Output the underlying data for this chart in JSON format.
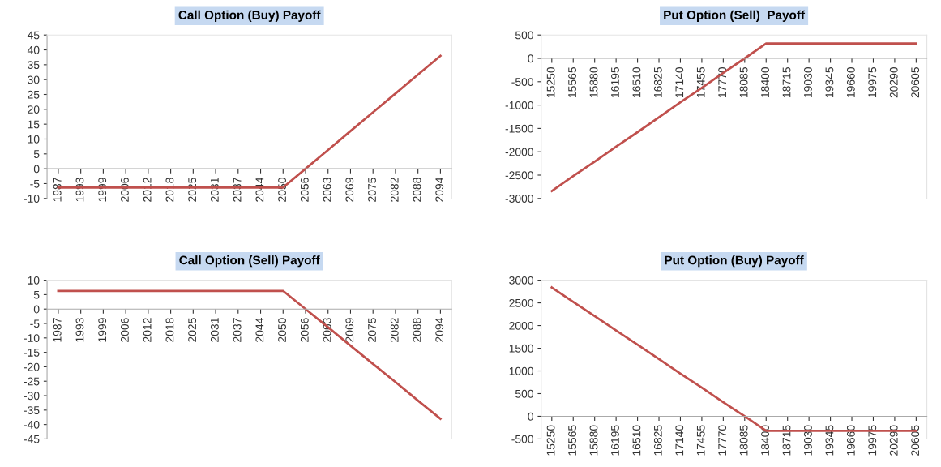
{
  "chart_data": [
    {
      "type": "line",
      "title": "Call Option (Buy) Payoff",
      "categories": [
        "1987",
        "1993",
        "1999",
        "2006",
        "2012",
        "2018",
        "2025",
        "2031",
        "2037",
        "2044",
        "2050",
        "2056",
        "2063",
        "2069",
        "2075",
        "2082",
        "2088",
        "2094"
      ],
      "series": [
        {
          "color": "#c0504d",
          "values": [
            -6.3,
            -6.3,
            -6.3,
            -6.3,
            -6.3,
            -6.3,
            -6.3,
            -6.3,
            -6.3,
            -6.3,
            -6.3,
            0,
            6.3,
            12.7,
            19,
            25.3,
            31.7,
            38
          ]
        }
      ],
      "ylim": [
        -10,
        45
      ],
      "yticks": [
        -10,
        -5,
        0,
        5,
        10,
        15,
        20,
        25,
        30,
        35,
        40,
        45
      ],
      "grid": false,
      "legend": false
    },
    {
      "type": "line",
      "title": "Put Option (Sell)  Payoff",
      "categories": [
        "15250",
        "15565",
        "15880",
        "16195",
        "16510",
        "16825",
        "17140",
        "17455",
        "17770",
        "18085",
        "18400",
        "18715",
        "19030",
        "19345",
        "19660",
        "19975",
        "20290",
        "20605"
      ],
      "series": [
        {
          "color": "#c0504d",
          "values": [
            -2840,
            -2520,
            -2210,
            -1890,
            -1580,
            -1260,
            -940,
            -630,
            -310,
            0,
            320,
            320,
            320,
            320,
            320,
            320,
            320,
            320
          ]
        }
      ],
      "ylim": [
        -3000,
        500
      ],
      "yticks": [
        -3000,
        -2500,
        -2000,
        -1500,
        -1000,
        -500,
        0,
        500
      ],
      "grid": false,
      "legend": false
    },
    {
      "type": "line",
      "title": "Call Option (Sell) Payoff",
      "categories": [
        "1987",
        "1993",
        "1999",
        "2006",
        "2012",
        "2018",
        "2025",
        "2031",
        "2037",
        "2044",
        "2050",
        "2056",
        "2063",
        "2069",
        "2075",
        "2082",
        "2088",
        "2094"
      ],
      "series": [
        {
          "color": "#c0504d",
          "values": [
            6.3,
            6.3,
            6.3,
            6.3,
            6.3,
            6.3,
            6.3,
            6.3,
            6.3,
            6.3,
            6.3,
            0,
            -6.3,
            -12.7,
            -19,
            -25.3,
            -31.7,
            -38
          ]
        }
      ],
      "ylim": [
        -45,
        10
      ],
      "yticks": [
        -45,
        -40,
        -35,
        -30,
        -25,
        -20,
        -15,
        -10,
        -5,
        0,
        5,
        10
      ],
      "grid": false,
      "legend": false
    },
    {
      "type": "line",
      "title": "Put Option (Buy) Payoff",
      "categories": [
        "15250",
        "15565",
        "15880",
        "16195",
        "16510",
        "16825",
        "17140",
        "17455",
        "17770",
        "18085",
        "18400",
        "18715",
        "19030",
        "19345",
        "19660",
        "19975",
        "20290",
        "20605"
      ],
      "series": [
        {
          "color": "#c0504d",
          "values": [
            2840,
            2520,
            2210,
            1890,
            1580,
            1260,
            940,
            630,
            310,
            0,
            -320,
            -320,
            -320,
            -320,
            -320,
            -320,
            -320,
            -320
          ]
        }
      ],
      "ylim": [
        -500,
        3000
      ],
      "yticks": [
        -500,
        0,
        500,
        1000,
        1500,
        2000,
        2500,
        3000
      ],
      "grid": false,
      "legend": false
    }
  ]
}
